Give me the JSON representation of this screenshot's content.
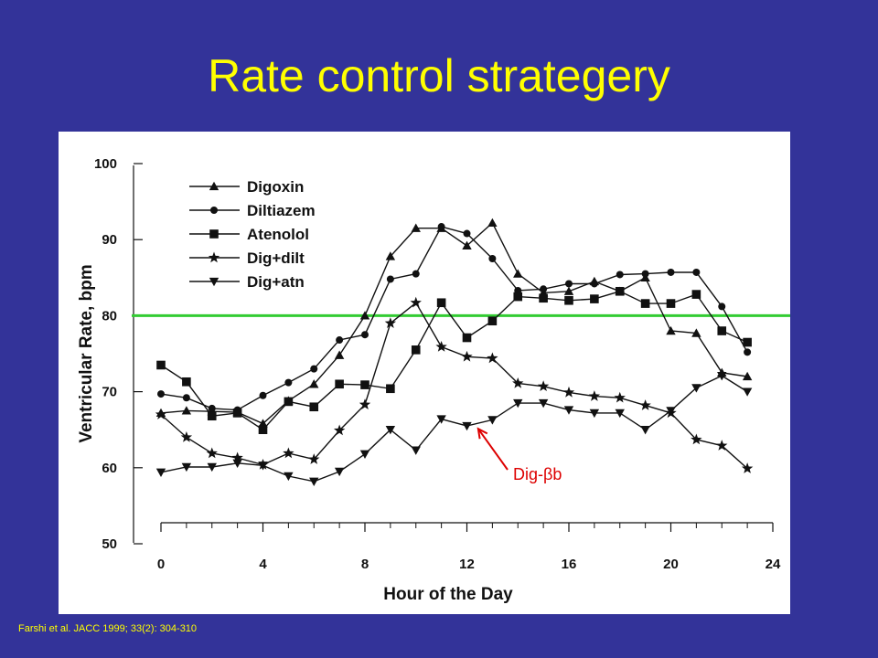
{
  "slide": {
    "title": "Rate control strategery",
    "citation": "Farshi et al. JACC 1999; 33(2): 304-310"
  },
  "colors": {
    "background": "#333399",
    "title": "#ffff00",
    "threshold_line": "#33cc33",
    "annotation": "#dd0000",
    "series": "#111111"
  },
  "chart_data": {
    "type": "line",
    "title": "",
    "xlabel": "Hour of the Day",
    "ylabel": "Ventricular Rate, bpm",
    "xlim": [
      0,
      24
    ],
    "ylim": [
      50,
      100
    ],
    "xticks": [
      0,
      4,
      8,
      12,
      16,
      20,
      24
    ],
    "yticks": [
      50,
      60,
      70,
      80,
      90,
      100
    ],
    "grid": false,
    "legend_position": "top-left",
    "x": [
      0,
      1,
      2,
      3,
      4,
      5,
      6,
      7,
      8,
      9,
      10,
      11,
      12,
      13,
      14,
      15,
      16,
      17,
      18,
      19,
      20,
      21,
      22,
      23
    ],
    "series": [
      {
        "name": "Digoxin",
        "marker": "triangle-up",
        "values": [
          67.2,
          67.5,
          67.4,
          67.3,
          65.8,
          68.8,
          71.0,
          74.8,
          80.0,
          87.8,
          91.5,
          91.5,
          89.2,
          92.2,
          85.5,
          83.0,
          83.2,
          84.5,
          83.2,
          85.0,
          78.0,
          77.7,
          72.5,
          72.0
        ]
      },
      {
        "name": "Diltiazem",
        "marker": "circle",
        "values": [
          69.7,
          69.2,
          67.8,
          67.6,
          69.5,
          71.2,
          73.0,
          76.8,
          77.5,
          84.8,
          85.5,
          91.7,
          90.8,
          87.5,
          83.3,
          83.5,
          84.2,
          84.2,
          85.4,
          85.5,
          85.7,
          85.7,
          81.2,
          75.2
        ]
      },
      {
        "name": "Atenolol",
        "marker": "square",
        "values": [
          73.5,
          71.3,
          66.8,
          67.2,
          65.0,
          68.7,
          68.0,
          71.0,
          70.9,
          70.4,
          75.5,
          81.7,
          77.1,
          79.3,
          82.5,
          82.3,
          82.0,
          82.2,
          83.2,
          81.6,
          81.6,
          82.8,
          78.0,
          76.5
        ]
      },
      {
        "name": "Dig+dilt",
        "marker": "star",
        "values": [
          67.0,
          64.0,
          61.9,
          61.3,
          60.4,
          61.9,
          61.1,
          64.9,
          68.3,
          79.0,
          81.7,
          75.9,
          74.6,
          74.4,
          71.1,
          70.7,
          69.9,
          69.4,
          69.2,
          68.2,
          67.2,
          63.7,
          62.9,
          59.9
        ]
      },
      {
        "name": "Dig+atn",
        "marker": "triangle-down",
        "values": [
          59.4,
          60.1,
          60.1,
          60.6,
          60.3,
          58.9,
          58.2,
          59.5,
          61.8,
          65.0,
          62.3,
          66.4,
          65.5,
          66.3,
          68.5,
          68.5,
          67.6,
          67.2,
          67.2,
          65.0,
          67.5,
          70.5,
          72.1,
          70.0
        ]
      }
    ],
    "reference_line": {
      "y": 80,
      "color": "#33cc33"
    },
    "annotations": [
      {
        "text": "Dig-βb",
        "arrow_to": {
          "x": 12.3,
          "y": 65.6
        },
        "color": "#dd0000"
      }
    ]
  }
}
